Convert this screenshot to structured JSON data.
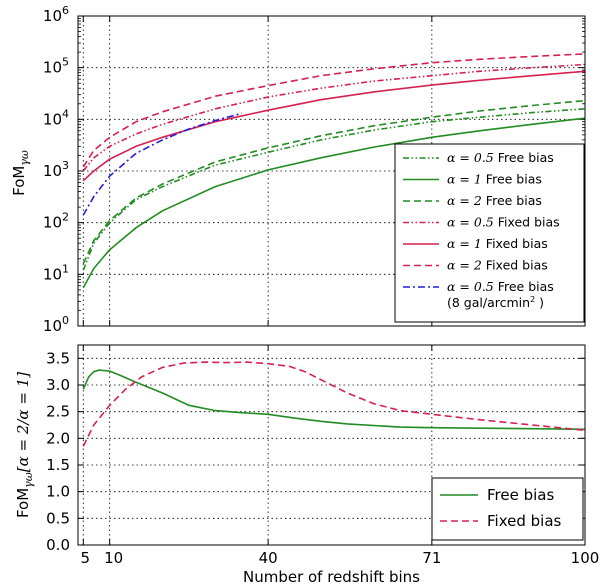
{
  "chart_data": [
    {
      "type": "line",
      "ylabel": "FoM",
      "ylabel_sub": "γω",
      "yscale": "log",
      "ylim": [
        1,
        1000000
      ],
      "xlim": [
        4,
        100
      ],
      "ytick_base": "10",
      "yticks_exp": [
        "0",
        "1",
        "2",
        "3",
        "4",
        "5",
        "6"
      ],
      "legend_position": "lower-right",
      "series": [
        {
          "name_math": "α = 0.5",
          "name_text": " Free bias",
          "color": "#228b22",
          "style": "dashdot-dot",
          "x": [
            5,
            7,
            10,
            15,
            20,
            30,
            40,
            50,
            60,
            71,
            80,
            90,
            100
          ],
          "y": [
            12,
            40,
            100,
            280,
            500,
            1300,
            2300,
            4000,
            6200,
            9000,
            11000,
            13500,
            16000
          ]
        },
        {
          "name_math": "α = 1",
          "name_text": " Free bias",
          "color": "#228b22",
          "style": "solid",
          "x": [
            5,
            7,
            10,
            15,
            20,
            30,
            40,
            50,
            60,
            71,
            80,
            90,
            100
          ],
          "y": [
            5.5,
            13,
            30,
            80,
            170,
            500,
            1050,
            1800,
            2900,
            4500,
            6000,
            8000,
            10500
          ]
        },
        {
          "name_math": "α = 2",
          "name_text": " Free bias",
          "color": "#228b22",
          "style": "dashed",
          "x": [
            5,
            7,
            10,
            15,
            20,
            30,
            40,
            50,
            60,
            71,
            80,
            90,
            100
          ],
          "y": [
            16,
            45,
            110,
            300,
            560,
            1500,
            2800,
            4800,
            7500,
            11000,
            14500,
            18500,
            23000
          ]
        },
        {
          "name_math": "α = 0.5",
          "name_text": " Fixed bias",
          "color": "#d62050",
          "style": "dashdot-dot",
          "x": [
            5,
            7,
            10,
            15,
            20,
            30,
            40,
            50,
            60,
            71,
            80,
            90,
            100
          ],
          "y": [
            1000,
            1800,
            3000,
            5200,
            8000,
            16000,
            27000,
            40000,
            55000,
            70000,
            85000,
            100000,
            115000
          ]
        },
        {
          "name_math": "α = 1",
          "name_text": " Fixed bias",
          "color": "#d62050",
          "style": "solid",
          "x": [
            5,
            7,
            10,
            15,
            20,
            30,
            40,
            50,
            60,
            71,
            80,
            90,
            100
          ],
          "y": [
            650,
            1000,
            1700,
            3000,
            4500,
            9000,
            15000,
            24000,
            34000,
            46000,
            57000,
            70000,
            85000
          ]
        },
        {
          "name_math": "α = 2",
          "name_text": " Fixed bias",
          "color": "#d62050",
          "style": "dashed",
          "x": [
            5,
            7,
            10,
            15,
            20,
            30,
            40,
            50,
            60,
            71,
            80,
            90,
            100
          ],
          "y": [
            1200,
            2500,
            4500,
            9000,
            14000,
            28000,
            45000,
            70000,
            95000,
            125000,
            145000,
            165000,
            185000
          ]
        },
        {
          "name_math": "α = 0.5",
          "name_text": " Free bias",
          "name_line2": "(8 gal/arcmin",
          "name_line2_sup": "2",
          "name_line2_end": " )",
          "color": "#1f1fdd",
          "style": "dashdot",
          "x": [
            5,
            7,
            10,
            15,
            20,
            25,
            30,
            35
          ],
          "y": [
            140,
            320,
            800,
            2200,
            4000,
            6500,
            9500,
            13000
          ]
        }
      ]
    },
    {
      "type": "line",
      "xlabel": "Number of redshift bins",
      "ylabel": "FoM",
      "ylabel_sub": "γω",
      "ylabel_bracket": "[α = 2/α = 1]",
      "ylim": [
        0.0,
        3.75
      ],
      "xlim": [
        4,
        100
      ],
      "xticks": [
        5,
        10,
        40,
        71,
        100
      ],
      "xtick_labels": [
        "5",
        "10",
        "40",
        "71",
        "100"
      ],
      "yticks": [
        0.0,
        0.5,
        1.0,
        1.5,
        2.0,
        2.5,
        3.0,
        3.5
      ],
      "ytick_labels": [
        "0.0",
        "0.5",
        "1.0",
        "1.5",
        "2.0",
        "2.5",
        "3.0",
        "3.5"
      ],
      "legend_position": "lower-right",
      "series": [
        {
          "name": "Free bias",
          "color": "#228b22",
          "style": "solid",
          "x": [
            5,
            6,
            7,
            8,
            10,
            12,
            15,
            20,
            25,
            30,
            35,
            40,
            45,
            50,
            55,
            60,
            65,
            71,
            80,
            90,
            100
          ],
          "y": [
            2.92,
            3.15,
            3.25,
            3.28,
            3.26,
            3.18,
            3.05,
            2.85,
            2.62,
            2.52,
            2.48,
            2.45,
            2.38,
            2.32,
            2.27,
            2.24,
            2.21,
            2.2,
            2.19,
            2.18,
            2.17
          ]
        },
        {
          "name": "Fixed bias",
          "color": "#d62050",
          "style": "dashed",
          "x": [
            5,
            7,
            10,
            13,
            16,
            20,
            24,
            28,
            32,
            36,
            40,
            44,
            47,
            50,
            55,
            60,
            65,
            71,
            80,
            90,
            100
          ],
          "y": [
            1.85,
            2.25,
            2.62,
            2.92,
            3.15,
            3.33,
            3.41,
            3.43,
            3.42,
            3.43,
            3.4,
            3.35,
            3.25,
            3.1,
            2.85,
            2.65,
            2.52,
            2.45,
            2.35,
            2.25,
            2.15
          ]
        }
      ]
    }
  ]
}
